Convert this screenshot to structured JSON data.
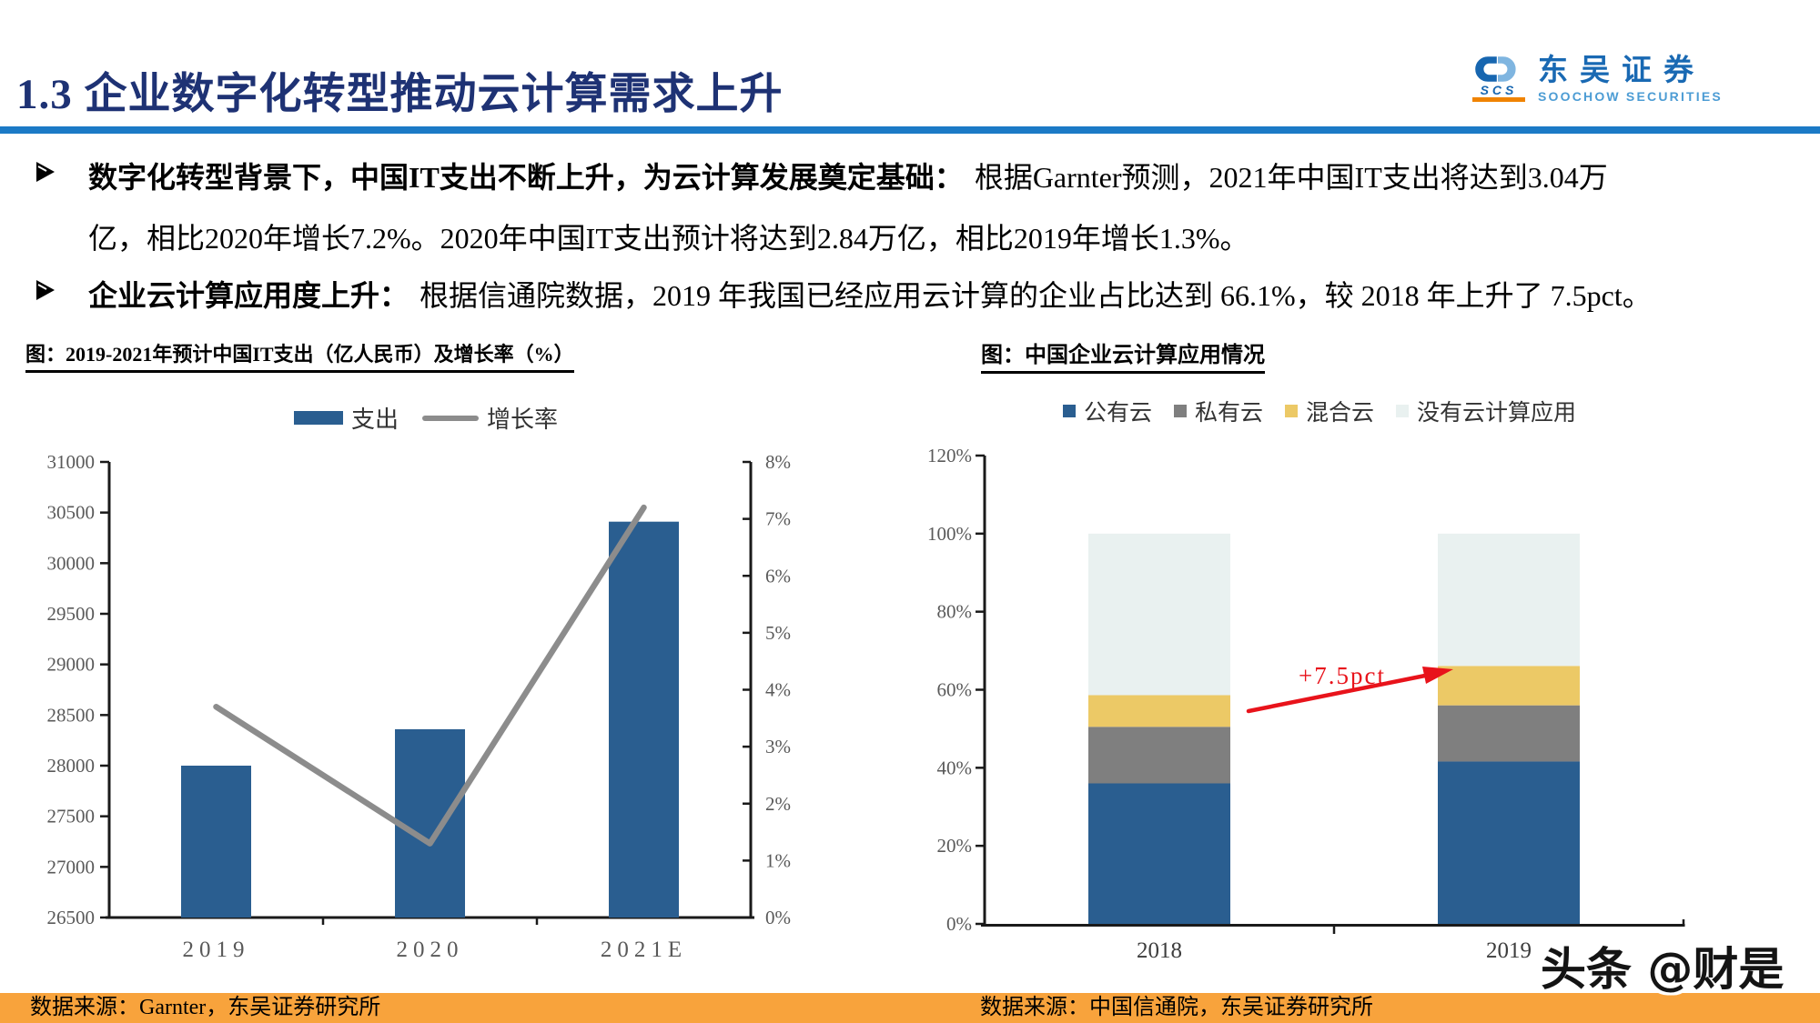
{
  "header": {
    "title": "1.3 企业数字化转型推动云计算需求上升",
    "logo": {
      "cn": "东吴证券",
      "en": "SOOCHOW SECURITIES",
      "abbr": "SCS"
    }
  },
  "bullets": [
    {
      "bold": "数字化转型背景下，中国IT支出不断上升，为云计算发展奠定基础：",
      "rest_line1": "根据Garnter预测，2021年中国IT支出将达到3.04万",
      "line2": "亿，相比2020年增长7.2%。2020年中国IT支出预计将达到2.84万亿，相比2019年增长1.3%。"
    },
    {
      "bold": "企业云计算应用度上升：",
      "rest": "根据信通院数据，2019 年我国已经应用云计算的企业占比达到 66.1%，较 2018 年上升了 7.5pct。"
    }
  ],
  "chart_data": [
    {
      "type": "bar+line",
      "title": "图：2019-2021年预计中国IT支出（亿人民币）及增长率（%）",
      "categories": [
        "2019",
        "2020",
        "2021E"
      ],
      "series": [
        {
          "name": "支出",
          "kind": "bar",
          "values": [
            28000,
            28360,
            30410
          ],
          "color": "#2A5E90"
        },
        {
          "name": "增长率",
          "kind": "line",
          "values": [
            3.7,
            1.3,
            7.2
          ],
          "color": "#8C8C8C"
        }
      ],
      "y_left": {
        "min": 26500,
        "max": 31000,
        "step": 500
      },
      "y_right": {
        "min": 0,
        "max": 8,
        "step": 1,
        "suffix": "%"
      },
      "legend_position": "top",
      "source": "数据来源：Garnter，东吴证券研究所"
    },
    {
      "type": "stacked-bar",
      "title": "图：中国企业云计算应用情况",
      "categories": [
        "2018",
        "2019"
      ],
      "series": [
        {
          "name": "公有云",
          "values": [
            36.0,
            41.6
          ],
          "color": "#2A5E90"
        },
        {
          "name": "私有云",
          "values": [
            14.5,
            14.4
          ],
          "color": "#7F7F7F"
        },
        {
          "name": "混合云",
          "values": [
            8.1,
            10.1
          ],
          "color": "#ECC966"
        },
        {
          "name": "没有云计算应用",
          "values": [
            41.4,
            33.9
          ],
          "color": "#E9F1F0"
        }
      ],
      "y": {
        "min": 0,
        "max": 120,
        "step": 20,
        "suffix": "%"
      },
      "annotation": {
        "label": "+7.5pct",
        "color": "#E8131B"
      },
      "legend_position": "top",
      "source": "数据来源：中国信通院，东吴证券研究所"
    }
  ],
  "watermark": "头条 @财是",
  "theme": {
    "title_color": "#1E3274",
    "rule_color": "#1B7AC6",
    "footer_color": "#F8A33C",
    "axis_color": "#1A1A1A",
    "tick_label_color": "#595959"
  }
}
